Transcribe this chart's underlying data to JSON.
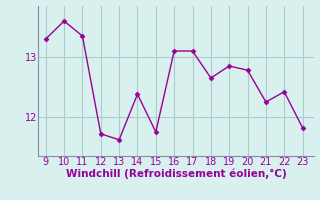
{
  "x": [
    9,
    10,
    11,
    12,
    13,
    14,
    15,
    16,
    17,
    18,
    19,
    20,
    21,
    22,
    23
  ],
  "y": [
    13.3,
    13.6,
    13.35,
    11.72,
    11.62,
    12.38,
    11.75,
    13.1,
    13.1,
    12.65,
    12.85,
    12.78,
    12.25,
    12.42,
    11.82
  ],
  "line_color": "#990099",
  "marker_color": "#990099",
  "bg_color": "#d8f0ee",
  "grid_color": "#aacccc",
  "xlabel": "Windchill (Refroidissement éolien,°C)",
  "xlabel_color": "#990099",
  "xlabel_fontsize": 7.5,
  "tick_color": "#990099",
  "tick_fontsize": 7,
  "ylim": [
    11.35,
    13.85
  ],
  "xlim": [
    8.6,
    23.6
  ],
  "yticks": [
    12,
    13
  ],
  "xticks": [
    9,
    10,
    11,
    12,
    13,
    14,
    15,
    16,
    17,
    18,
    19,
    20,
    21,
    22,
    23
  ],
  "spine_color": "#8888aa"
}
